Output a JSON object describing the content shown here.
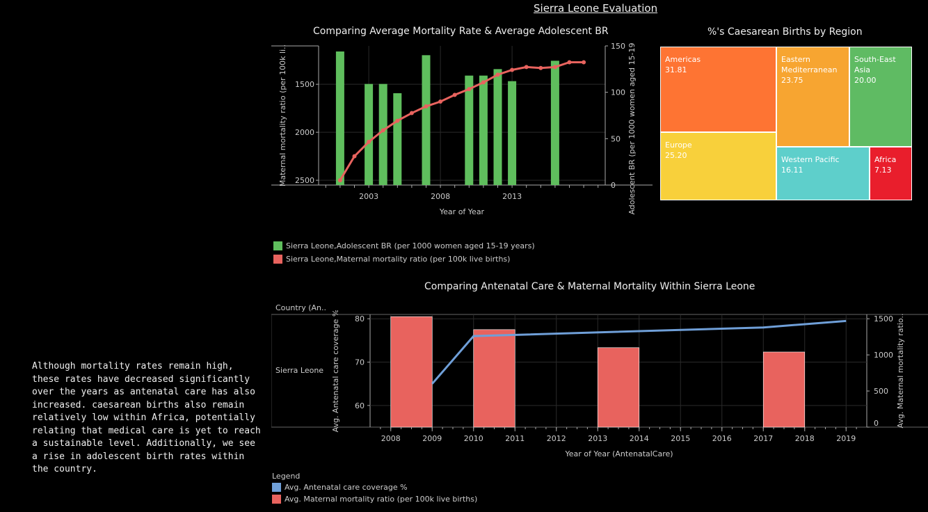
{
  "dashboard_title": "Sierra Leone Evaluation",
  "narrative": "Although mortality rates remain high, these rates have decreased significantly over the years as antenatal care has also increased. caesarean births also remain relatively low within Africa, potentially relating that medical care is yet to reach a sustainable level. Additionally, we see a rise in adolescent birth rates within the country.",
  "colors": {
    "green": "#5fbe5d",
    "red": "#e8635e",
    "blue": "#6f9fd8",
    "grid": "#2a2a2a",
    "axis": "#aaaaaa"
  },
  "chart_data": [
    {
      "id": "mortality_vs_br",
      "type": "bar+line",
      "title": "Comparing Average Mortality Rate & Average Adolescent BR",
      "xlabel": "Year of Year",
      "x_ticks": [
        "2003",
        "2008",
        "2013"
      ],
      "left_axis": {
        "label": "Maternal mortality ratio (per 100k li..",
        "ticks": [
          "1500",
          "2000",
          "2500"
        ],
        "reversed": true,
        "range": [
          1100,
          2550
        ]
      },
      "right_axis": {
        "label": "Adolescent BR (per 1000 women aged 15-19 years)",
        "ticks": [
          "150",
          "100",
          "50",
          "0"
        ],
        "range": [
          0,
          150
        ]
      },
      "series": [
        {
          "name": "Sierra Leone,Adolescent BR (per 1000 women aged 15-19 years)",
          "kind": "bar",
          "axis": "right",
          "points": [
            {
              "x": 2001,
              "y": 144
            },
            {
              "x": 2002,
              "y": 0
            },
            {
              "x": 2003,
              "y": 109
            },
            {
              "x": 2004,
              "y": 109
            },
            {
              "x": 2005,
              "y": 99
            },
            {
              "x": 2007,
              "y": 140
            },
            {
              "x": 2010,
              "y": 118
            },
            {
              "x": 2011,
              "y": 118
            },
            {
              "x": 2012,
              "y": 125
            },
            {
              "x": 2013,
              "y": 112
            },
            {
              "x": 2016,
              "y": 134
            }
          ]
        },
        {
          "name": "Sierra Leone,Maternal mortality ratio (per 100k live births)",
          "kind": "line",
          "axis": "left",
          "points": [
            {
              "x": 2001,
              "y": 2500
            },
            {
              "x": 2002,
              "y": 2250
            },
            {
              "x": 2003,
              "y": 2100
            },
            {
              "x": 2004,
              "y": 1980
            },
            {
              "x": 2005,
              "y": 1880
            },
            {
              "x": 2006,
              "y": 1800
            },
            {
              "x": 2007,
              "y": 1730
            },
            {
              "x": 2008,
              "y": 1680
            },
            {
              "x": 2009,
              "y": 1610
            },
            {
              "x": 2010,
              "y": 1550
            },
            {
              "x": 2011,
              "y": 1480
            },
            {
              "x": 2012,
              "y": 1400
            },
            {
              "x": 2013,
              "y": 1350
            },
            {
              "x": 2014,
              "y": 1320
            },
            {
              "x": 2015,
              "y": 1330
            },
            {
              "x": 2016,
              "y": 1320
            },
            {
              "x": 2017,
              "y": 1270
            },
            {
              "x": 2018,
              "y": 1270
            }
          ]
        }
      ],
      "legend": [
        "Sierra Leone,Adolescent BR (per 1000 women aged 15-19 years)",
        "Sierra Leone,Maternal mortality ratio (per 100k live births)"
      ]
    },
    {
      "id": "caesarean_treemap",
      "type": "treemap",
      "title": "%'s Caesarean Births by Region",
      "cells": [
        {
          "label": "Americas",
          "value": "31.81",
          "color": "#fe7433"
        },
        {
          "label": "Europe",
          "value": "25.20",
          "color": "#f8d03b"
        },
        {
          "label": "Eastern Mediterranean",
          "value": "23.75",
          "color": "#f7a531"
        },
        {
          "label": "South-East Asia",
          "value": "20.00",
          "color": "#5fbb63"
        },
        {
          "label": "Western Pacific",
          "value": "16.11",
          "color": "#5ecfcb"
        },
        {
          "label": "Africa",
          "value": "7.13",
          "color": "#e91e2c"
        }
      ]
    },
    {
      "id": "antenatal_vs_mortality",
      "type": "bar+line",
      "title": "Comparing Antenatal Care & Maternal Mortality Within Sierra Leone",
      "row_header": "Country (An..",
      "row_label": "Sierra Leone",
      "xlabel": "Year of Year (AntenatalCare)",
      "x_ticks": [
        "2008",
        "2009",
        "2010",
        "2011",
        "2012",
        "2013",
        "2014",
        "2015",
        "2016",
        "2017",
        "2018",
        "2019"
      ],
      "left_axis": {
        "label": "Avg. Antenatal care coverage %",
        "ticks": [
          "80",
          "70",
          "60"
        ],
        "range": [
          55,
          81
        ]
      },
      "right_axis": {
        "label": "Avg. Maternal mortality ratio..",
        "ticks": [
          "1500",
          "1000",
          "500",
          "0"
        ],
        "range": [
          0,
          1560
        ]
      },
      "series": [
        {
          "name": "Avg. Antenatal care coverage %",
          "kind": "line",
          "axis": "left",
          "points": [
            {
              "x": 2009,
              "y": 65
            },
            {
              "x": 2010,
              "y": 76
            },
            {
              "x": 2017,
              "y": 78
            },
            {
              "x": 2019,
              "y": 79.5
            }
          ]
        },
        {
          "name": "Avg. Maternal mortality ratio (per 100k live births)",
          "kind": "bar",
          "axis": "right",
          "points": [
            {
              "x": 2008.5,
              "y": 1530
            },
            {
              "x": 2010.5,
              "y": 1350
            },
            {
              "x": 2013.5,
              "y": 1100
            },
            {
              "x": 2017.5,
              "y": 1040
            }
          ]
        }
      ],
      "legend_title": "Legend",
      "legend": [
        "Avg. Antenatal care coverage %",
        "Avg. Maternal mortality ratio (per 100k live births)"
      ]
    }
  ]
}
